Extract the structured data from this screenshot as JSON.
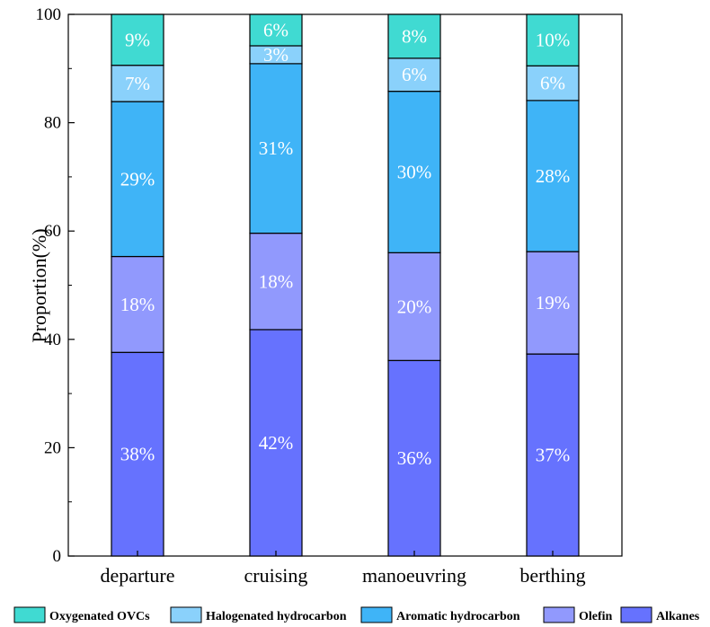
{
  "chart_data": {
    "type": "bar",
    "stacked": true,
    "categories": [
      "departure",
      "cruising",
      "manoeuvring",
      "berthing"
    ],
    "series": [
      {
        "name": "Alkanes",
        "color": "#6672fe",
        "values": [
          37.6,
          41.8,
          36.1,
          37.3
        ],
        "labels": [
          "38%",
          "42%",
          "36%",
          "37%"
        ]
      },
      {
        "name": "Olefin",
        "color": "#9199fd",
        "values": [
          17.7,
          17.8,
          19.9,
          18.9
        ],
        "labels": [
          "18%",
          "18%",
          "20%",
          "19%"
        ]
      },
      {
        "name": "Aromatic hydrocarbon",
        "color": "#3fb4f7",
        "values": [
          28.6,
          31.3,
          29.8,
          27.9
        ],
        "labels": [
          "29%",
          "31%",
          "30%",
          "28%"
        ]
      },
      {
        "name": "Halogenated hydrocarbon",
        "color": "#8ad1fb",
        "values": [
          6.7,
          3.3,
          6.1,
          6.4
        ],
        "labels": [
          "7%",
          "3%",
          "6%",
          "6%"
        ]
      },
      {
        "name": "Oxygenated OVCs",
        "color": "#40dad2",
        "values": [
          9.4,
          5.8,
          8.1,
          9.5
        ],
        "labels": [
          "9%",
          "6%",
          "8%",
          "10%"
        ]
      }
    ],
    "legend_order": [
      "Oxygenated OVCs",
      "Halogenated hydrocarbon",
      "Aromatic hydrocarbon",
      "Olefin",
      "Alkanes"
    ],
    "xlabel": "",
    "ylabel": "Proportion(%)",
    "ylim": [
      0,
      100
    ],
    "yticks": [
      0,
      20,
      40,
      60,
      80,
      100
    ],
    "legend_position": "bottom",
    "grid": false
  }
}
